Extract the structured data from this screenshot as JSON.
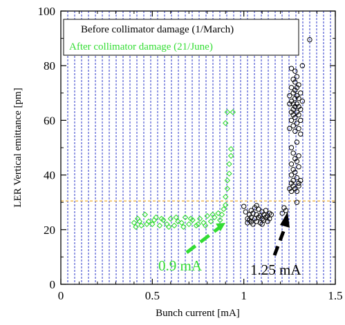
{
  "chart_data": {
    "type": "scatter",
    "title": "",
    "xlabel": "Bunch current [mA]",
    "ylabel": "LER Vertical emittance [pm]",
    "xlim": [
      0,
      1.5
    ],
    "ylim": [
      0,
      100
    ],
    "x_ticks": [
      "0",
      "0.5",
      "1",
      "1.5"
    ],
    "y_ticks": [
      "0",
      "20",
      "40",
      "60",
      "80",
      "100"
    ],
    "legend_position": "top-right",
    "grid": "vertical dashed blue lines",
    "reference_line": {
      "y": 30.5,
      "color": "#f0b030",
      "style": "dashed"
    },
    "series": [
      {
        "name": "Before collimator damage (1/March)",
        "color": "#000000",
        "marker": "circle",
        "points": [
          [
            1.0,
            28.5
          ],
          [
            1.01,
            26.5
          ],
          [
            1.02,
            24.0
          ],
          [
            1.02,
            22.5
          ],
          [
            1.03,
            25.5
          ],
          [
            1.03,
            23.5
          ],
          [
            1.04,
            27.0
          ],
          [
            1.04,
            24.5
          ],
          [
            1.05,
            22.0
          ],
          [
            1.05,
            26.0
          ],
          [
            1.06,
            24.0
          ],
          [
            1.06,
            28.0
          ],
          [
            1.07,
            23.0
          ],
          [
            1.07,
            25.5
          ],
          [
            1.08,
            24.5
          ],
          [
            1.08,
            27.5
          ],
          [
            1.09,
            22.5
          ],
          [
            1.09,
            25.0
          ],
          [
            1.1,
            24.0
          ],
          [
            1.1,
            26.5
          ],
          [
            1.11,
            23.5
          ],
          [
            1.11,
            25.5
          ],
          [
            1.12,
            24.5
          ],
          [
            1.12,
            27.0
          ],
          [
            1.13,
            23.0
          ],
          [
            1.13,
            25.0
          ],
          [
            1.14,
            26.0
          ],
          [
            1.14,
            24.0
          ],
          [
            1.15,
            25.5
          ],
          [
            1.04,
            22.8
          ],
          [
            1.07,
            28.8
          ],
          [
            1.1,
            22.0
          ],
          [
            1.21,
            26.0
          ],
          [
            1.22,
            28.0
          ],
          [
            1.23,
            27.0
          ],
          [
            1.25,
            57.0
          ],
          [
            1.25,
            66.0
          ],
          [
            1.25,
            69.0
          ],
          [
            1.25,
            35.0
          ],
          [
            1.26,
            79.0
          ],
          [
            1.26,
            72.0
          ],
          [
            1.26,
            67.0
          ],
          [
            1.26,
            63.0
          ],
          [
            1.26,
            60.0
          ],
          [
            1.26,
            50.0
          ],
          [
            1.26,
            44.0
          ],
          [
            1.26,
            40.0
          ],
          [
            1.26,
            37.0
          ],
          [
            1.26,
            34.0
          ],
          [
            1.27,
            75.0
          ],
          [
            1.27,
            70.0
          ],
          [
            1.27,
            66.0
          ],
          [
            1.27,
            64.0
          ],
          [
            1.27,
            62.0
          ],
          [
            1.27,
            58.0
          ],
          [
            1.27,
            48.0
          ],
          [
            1.27,
            42.0
          ],
          [
            1.27,
            38.0
          ],
          [
            1.27,
            36.0
          ],
          [
            1.28,
            78.0
          ],
          [
            1.28,
            74.0
          ],
          [
            1.28,
            71.0
          ],
          [
            1.28,
            68.0
          ],
          [
            1.28,
            65.0
          ],
          [
            1.28,
            61.0
          ],
          [
            1.28,
            56.0
          ],
          [
            1.28,
            46.0
          ],
          [
            1.28,
            41.0
          ],
          [
            1.28,
            35.0
          ],
          [
            1.29,
            76.0
          ],
          [
            1.29,
            72.0
          ],
          [
            1.29,
            69.0
          ],
          [
            1.29,
            66.0
          ],
          [
            1.29,
            63.0
          ],
          [
            1.29,
            59.0
          ],
          [
            1.29,
            52.0
          ],
          [
            1.29,
            45.0
          ],
          [
            1.29,
            39.0
          ],
          [
            1.29,
            34.0
          ],
          [
            1.29,
            30.0
          ],
          [
            1.3,
            73.0
          ],
          [
            1.3,
            68.0
          ],
          [
            1.3,
            65.0
          ],
          [
            1.3,
            62.0
          ],
          [
            1.3,
            57.0
          ],
          [
            1.3,
            47.0
          ],
          [
            1.3,
            43.0
          ],
          [
            1.3,
            37.0
          ],
          [
            1.3,
            36.0
          ],
          [
            1.31,
            70.0
          ],
          [
            1.31,
            64.0
          ],
          [
            1.31,
            60.0
          ],
          [
            1.31,
            55.0
          ],
          [
            1.31,
            38.0
          ],
          [
            1.32,
            80.0
          ],
          [
            1.32,
            67.0
          ],
          [
            1.36,
            89.5
          ]
        ]
      },
      {
        "name": "After collimator damage (21/June)",
        "color": "#33dd33",
        "marker": "diamond",
        "points": [
          [
            0.4,
            22.5
          ],
          [
            0.42,
            24.0
          ],
          [
            0.44,
            21.5
          ],
          [
            0.46,
            25.5
          ],
          [
            0.48,
            23.0
          ],
          [
            0.5,
            22.0
          ],
          [
            0.52,
            24.5
          ],
          [
            0.54,
            21.5
          ],
          [
            0.56,
            23.5
          ],
          [
            0.58,
            22.0
          ],
          [
            0.6,
            24.0
          ],
          [
            0.62,
            21.5
          ],
          [
            0.64,
            23.0
          ],
          [
            0.66,
            22.5
          ],
          [
            0.68,
            24.5
          ],
          [
            0.7,
            22.0
          ],
          [
            0.72,
            23.5
          ],
          [
            0.74,
            21.5
          ],
          [
            0.76,
            24.0
          ],
          [
            0.78,
            22.5
          ],
          [
            0.8,
            25.0
          ],
          [
            0.82,
            23.0
          ],
          [
            0.84,
            24.5
          ],
          [
            0.86,
            26.0
          ],
          [
            0.88,
            25.5
          ],
          [
            0.89,
            27.5
          ],
          [
            0.41,
            21.0
          ],
          [
            0.43,
            23.0
          ],
          [
            0.47,
            22.0
          ],
          [
            0.51,
            23.5
          ],
          [
            0.55,
            24.0
          ],
          [
            0.59,
            21.0
          ],
          [
            0.63,
            24.5
          ],
          [
            0.67,
            21.0
          ],
          [
            0.71,
            24.0
          ],
          [
            0.75,
            22.0
          ],
          [
            0.79,
            21.5
          ],
          [
            0.83,
            25.5
          ],
          [
            0.87,
            23.5
          ],
          [
            0.9,
            29.0
          ],
          [
            0.9,
            32.0
          ],
          [
            0.91,
            35.0
          ],
          [
            0.91,
            38.0
          ],
          [
            0.92,
            40.5
          ],
          [
            0.92,
            44.0
          ],
          [
            0.93,
            47.0
          ],
          [
            0.93,
            49.5
          ],
          [
            0.9,
            59.0
          ],
          [
            0.91,
            63.0
          ],
          [
            0.94,
            63.0
          ]
        ]
      }
    ]
  },
  "annotations": [
    {
      "text": "0.9 mA",
      "color": "#33dd33"
    },
    {
      "text": "1.25 mA",
      "color": "#000000"
    }
  ]
}
